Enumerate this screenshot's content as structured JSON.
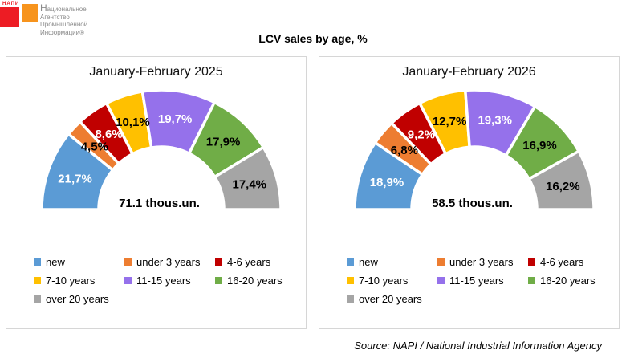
{
  "logo": {
    "abbr": "НАПИ",
    "lines": [
      "Национальное",
      "Агентство",
      "Промышленной",
      "Информации®"
    ],
    "red_color": "#ED1C24",
    "orange_color": "#F7941D"
  },
  "page_title": "LCV sales by age, %",
  "source": "Source: NAPI / National Industrial Information Agency",
  "legend_labels": [
    "new",
    "under 3 years",
    "4-6 years",
    "7-10 years",
    "11-15 years",
    "16-20 years",
    "over 20 years"
  ],
  "chart_data": [
    {
      "type": "pie",
      "variant": "half-donut",
      "title": "January-February 2025",
      "center_label": "71.1 thous.un.",
      "categories": [
        "new",
        "under 3 years",
        "4-6 years",
        "7-10 years",
        "11-15 years",
        "16-20 years",
        "over 20 years"
      ],
      "values": [
        21.7,
        4.5,
        8.6,
        10.1,
        19.7,
        17.9,
        17.4
      ],
      "labels": [
        "21,7%",
        "4,5%",
        "8,6%",
        "10,1%",
        "19,7%",
        "17,9%",
        "17,4%"
      ],
      "colors": [
        "#5B9BD5",
        "#ED7D31",
        "#C00000",
        "#FFC000",
        "#9571EB",
        "#70AD47",
        "#A5A5A5"
      ],
      "label_colors": [
        "#FFFFFF",
        "#000000",
        "#FFFFFF",
        "#000000",
        "#FFFFFF",
        "#000000",
        "#000000"
      ],
      "legend_position": "bottom"
    },
    {
      "type": "pie",
      "variant": "half-donut",
      "title": "January-February 2026",
      "center_label": "58.5 thous.un.",
      "categories": [
        "new",
        "under 3 years",
        "4-6 years",
        "7-10 years",
        "11-15 years",
        "16-20 years",
        "over 20 years"
      ],
      "values": [
        18.9,
        6.8,
        9.2,
        12.7,
        19.3,
        16.9,
        16.2
      ],
      "labels": [
        "18,9%",
        "6,8%",
        "9,2%",
        "12,7%",
        "19,3%",
        "16,9%",
        "16,2%"
      ],
      "colors": [
        "#5B9BD5",
        "#ED7D31",
        "#C00000",
        "#FFC000",
        "#9571EB",
        "#70AD47",
        "#A5A5A5"
      ],
      "label_colors": [
        "#FFFFFF",
        "#000000",
        "#FFFFFF",
        "#000000",
        "#FFFFFF",
        "#000000",
        "#000000"
      ],
      "legend_position": "bottom"
    }
  ]
}
